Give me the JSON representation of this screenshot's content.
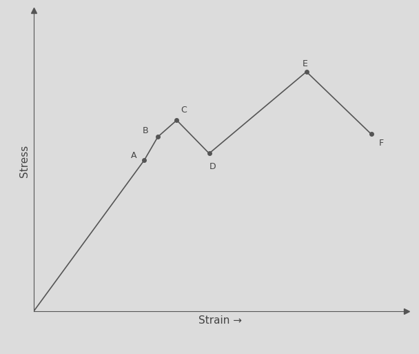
{
  "chart_data": {
    "type": "line",
    "x_label": "Strain →",
    "y_label": "Stress",
    "x": [
      0,
      164,
      184,
      212,
      260,
      404,
      500
    ],
    "values": [
      0,
      228,
      263,
      288,
      238,
      361,
      267
    ],
    "point_labels": [
      null,
      "A",
      "B",
      "C",
      "D",
      "E",
      "F"
    ],
    "xlim": [
      0,
      552
    ],
    "ylim": [
      0,
      453
    ],
    "xticks": [],
    "yticks": [],
    "tick_labels": false,
    "grid": false,
    "color": "#555555",
    "marker": "o",
    "line_style": "solid"
  }
}
